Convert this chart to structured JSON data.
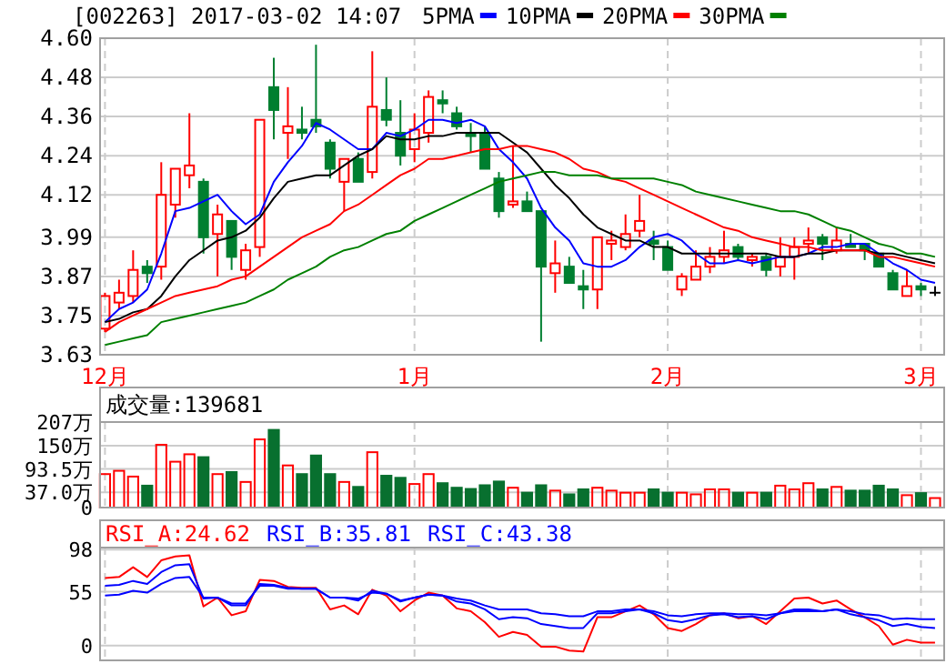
{
  "chart_data": [
    {
      "type": "candlestick",
      "title": "[002263] 2017-03-02 14:07",
      "legend": "top right",
      "grid": true,
      "categories": [
        "12月",
        null,
        null,
        null,
        null,
        null,
        null,
        null,
        null,
        null,
        null,
        null,
        null,
        null,
        null,
        null,
        null,
        null,
        null,
        null,
        null,
        null,
        "1月",
        null,
        null,
        null,
        null,
        null,
        null,
        null,
        null,
        null,
        null,
        null,
        null,
        null,
        null,
        null,
        null,
        null,
        "2月",
        null,
        null,
        null,
        null,
        null,
        null,
        null,
        null,
        null,
        null,
        null,
        null,
        null,
        null,
        null,
        null,
        null,
        "3月",
        null
      ],
      "ylim": [
        3.63,
        4.6
      ],
      "yticks": [
        {
          "value": 4.6,
          "label": "4.60"
        },
        4.48,
        4.36,
        4.24,
        4.12,
        3.99,
        3.87,
        3.75,
        3.63
      ],
      "ohlc": [
        [
          3.71,
          3.82,
          3.7,
          3.81
        ],
        [
          3.79,
          3.86,
          3.77,
          3.82
        ],
        [
          3.81,
          3.95,
          3.79,
          3.89
        ],
        [
          3.9,
          3.92,
          3.85,
          3.88
        ],
        [
          3.9,
          4.22,
          3.86,
          4.12
        ],
        [
          4.09,
          4.2,
          4.05,
          4.2
        ],
        [
          4.18,
          4.37,
          4.14,
          4.21
        ],
        [
          4.16,
          4.17,
          3.94,
          3.99
        ],
        [
          4.0,
          4.09,
          3.87,
          4.06
        ],
        [
          4.04,
          4.04,
          3.89,
          3.93
        ],
        [
          3.89,
          3.97,
          3.86,
          3.95
        ],
        [
          3.96,
          4.35,
          3.93,
          4.35
        ],
        [
          4.45,
          4.54,
          4.29,
          4.38
        ],
        [
          4.31,
          4.45,
          4.23,
          4.33
        ],
        [
          4.32,
          4.39,
          4.29,
          4.31
        ],
        [
          4.35,
          4.58,
          4.31,
          4.33
        ],
        [
          4.28,
          4.29,
          4.17,
          4.2
        ],
        [
          4.16,
          4.23,
          4.07,
          4.23
        ],
        [
          4.23,
          4.25,
          4.16,
          4.16
        ],
        [
          4.19,
          4.56,
          4.17,
          4.39
        ],
        [
          4.38,
          4.48,
          4.33,
          4.35
        ],
        [
          4.31,
          4.41,
          4.21,
          4.24
        ],
        [
          4.26,
          4.37,
          4.22,
          4.32
        ],
        [
          4.31,
          4.44,
          4.28,
          4.42
        ],
        [
          4.41,
          4.44,
          4.37,
          4.4
        ],
        [
          4.37,
          4.39,
          4.32,
          4.33
        ],
        [
          4.31,
          4.34,
          4.25,
          4.3
        ],
        [
          4.31,
          4.33,
          4.2,
          4.2
        ],
        [
          4.17,
          4.19,
          4.05,
          4.07
        ],
        [
          4.09,
          4.27,
          4.08,
          4.1
        ],
        [
          4.1,
          4.13,
          4.07,
          4.07
        ],
        [
          4.07,
          4.07,
          3.67,
          3.9
        ],
        [
          3.88,
          3.98,
          3.82,
          3.91
        ],
        [
          3.9,
          3.93,
          3.85,
          3.85
        ],
        [
          3.84,
          3.89,
          3.77,
          3.83
        ],
        [
          3.83,
          3.99,
          3.77,
          3.99
        ],
        [
          3.97,
          4.01,
          3.92,
          3.98
        ],
        [
          3.96,
          4.06,
          3.95,
          4.0
        ],
        [
          4.01,
          4.12,
          3.99,
          4.04
        ],
        [
          3.98,
          4.01,
          3.92,
          3.97
        ],
        [
          3.96,
          3.98,
          3.89,
          3.89
        ],
        [
          3.83,
          3.88,
          3.81,
          3.87
        ],
        [
          3.86,
          3.95,
          3.86,
          3.9
        ],
        [
          3.9,
          3.96,
          3.88,
          3.93
        ],
        [
          3.93,
          4.01,
          3.91,
          3.95
        ],
        [
          3.96,
          3.97,
          3.92,
          3.93
        ],
        [
          3.92,
          3.94,
          3.9,
          3.93
        ],
        [
          3.93,
          3.94,
          3.87,
          3.89
        ],
        [
          3.9,
          3.99,
          3.87,
          3.93
        ],
        [
          3.93,
          3.99,
          3.86,
          3.96
        ],
        [
          3.97,
          4.02,
          3.94,
          3.98
        ],
        [
          3.99,
          4.0,
          3.92,
          3.97
        ],
        [
          3.95,
          4.02,
          3.94,
          3.98
        ],
        [
          3.97,
          4.0,
          3.96,
          3.96
        ],
        [
          3.97,
          3.97,
          3.92,
          3.95
        ],
        [
          3.94,
          3.94,
          3.9,
          3.9
        ],
        [
          3.88,
          3.89,
          3.83,
          3.83
        ],
        [
          3.81,
          3.89,
          3.81,
          3.84
        ],
        [
          3.84,
          3.85,
          3.81,
          3.83
        ],
        [
          3.82,
          3.84,
          3.81,
          3.82
        ]
      ],
      "colors": [
        "#ff0000",
        "#ff0000",
        "#ff0000",
        "#007f30",
        "#ff0000",
        "#ff0000",
        "#ff0000",
        "#007f30",
        "#ff0000",
        "#007f30",
        "#ff0000",
        "#ff0000",
        "#007f30",
        "#ff0000",
        "#007f30",
        "#007f30",
        "#007f30",
        "#ff0000",
        "#007f30",
        "#ff0000",
        "#007f30",
        "#007f30",
        "#ff0000",
        "#ff0000",
        "#007f30",
        "#007f30",
        "#007f30",
        "#007f30",
        "#007f30",
        "#ff0000",
        "#007f30",
        "#007f30",
        "#ff0000",
        "#007f30",
        "#007f30",
        "#ff0000",
        "#ff0000",
        "#ff0000",
        "#ff0000",
        "#007f30",
        "#007f30",
        "#ff0000",
        "#ff0000",
        "#ff0000",
        "#ff0000",
        "#007f30",
        "#ff0000",
        "#007f30",
        "#ff0000",
        "#ff0000",
        "#ff0000",
        "#007f30",
        "#ff0000",
        "#007f30",
        "#007f30",
        "#007f30",
        "#007f30",
        "#ff0000",
        "#007f30",
        "#000000"
      ],
      "series": [
        {
          "type": "line",
          "name": "5PMA",
          "color": "#0000ff",
          "values": [
            3.73,
            3.77,
            3.79,
            3.83,
            3.94,
            4.07,
            4.08,
            4.1,
            4.12,
            4.07,
            4.03,
            4.06,
            4.16,
            4.22,
            4.27,
            4.34,
            4.32,
            4.29,
            4.26,
            4.26,
            4.31,
            4.3,
            4.32,
            4.35,
            4.35,
            4.34,
            4.35,
            4.33,
            4.26,
            4.22,
            4.17,
            4.08,
            4.02,
            3.98,
            3.91,
            3.9,
            3.9,
            3.92,
            3.96,
            3.99,
            4.0,
            3.98,
            3.94,
            3.91,
            3.91,
            3.92,
            3.91,
            3.92,
            3.93,
            3.93,
            3.94,
            3.96,
            3.96,
            3.97,
            3.97,
            3.94,
            3.91,
            3.89,
            3.86,
            3.85
          ]
        },
        {
          "type": "line",
          "name": "10PMA",
          "color": "#000000",
          "values": [
            3.73,
            3.74,
            3.76,
            3.77,
            3.81,
            3.87,
            3.92,
            3.95,
            3.98,
            3.99,
            4.01,
            4.05,
            4.11,
            4.16,
            4.17,
            4.18,
            4.18,
            4.21,
            4.24,
            4.26,
            4.3,
            4.29,
            4.29,
            4.3,
            4.3,
            4.31,
            4.31,
            4.31,
            4.31,
            4.28,
            4.25,
            4.2,
            4.15,
            4.11,
            4.06,
            4.02,
            4.0,
            3.98,
            3.98,
            3.96,
            3.96,
            3.94,
            3.94,
            3.94,
            3.94,
            3.94,
            3.94,
            3.94,
            3.93,
            3.93,
            3.94,
            3.94,
            3.95,
            3.95,
            3.95,
            3.94,
            3.94,
            3.93,
            3.92,
            3.91
          ]
        },
        {
          "type": "line",
          "name": "20PMA",
          "color": "#ff0000",
          "values": [
            3.7,
            3.73,
            3.75,
            3.77,
            3.79,
            3.81,
            3.82,
            3.83,
            3.84,
            3.86,
            3.87,
            3.9,
            3.93,
            3.96,
            3.99,
            4.01,
            4.03,
            4.07,
            4.09,
            4.12,
            4.15,
            4.18,
            4.2,
            4.23,
            4.23,
            4.24,
            4.25,
            4.26,
            4.26,
            4.27,
            4.27,
            4.26,
            4.25,
            4.23,
            4.2,
            4.19,
            4.17,
            4.16,
            4.14,
            4.12,
            4.1,
            4.08,
            4.06,
            4.04,
            4.02,
            4.01,
            3.99,
            3.98,
            3.97,
            3.96,
            3.96,
            3.95,
            3.95,
            3.95,
            3.95,
            3.93,
            3.93,
            3.92,
            3.91,
            3.9
          ]
        },
        {
          "type": "line",
          "name": "30PMA",
          "color": "#008000",
          "values": [
            3.66,
            3.67,
            3.68,
            3.69,
            3.73,
            3.74,
            3.75,
            3.76,
            3.77,
            3.78,
            3.79,
            3.81,
            3.83,
            3.86,
            3.88,
            3.9,
            3.93,
            3.95,
            3.96,
            3.98,
            4.0,
            4.01,
            4.04,
            4.06,
            4.08,
            4.1,
            4.12,
            4.14,
            4.16,
            4.17,
            4.18,
            4.19,
            4.19,
            4.18,
            4.18,
            4.18,
            4.17,
            4.17,
            4.17,
            4.17,
            4.16,
            4.15,
            4.13,
            4.12,
            4.11,
            4.1,
            4.09,
            4.08,
            4.07,
            4.07,
            4.06,
            4.04,
            4.02,
            4.01,
            3.99,
            3.97,
            3.96,
            3.94,
            3.94,
            3.93
          ]
        }
      ]
    },
    {
      "type": "bar",
      "title": "成交量:139681",
      "grid": true,
      "tick_labels": "y",
      "categories": [
        null,
        null,
        null,
        null,
        null,
        null,
        null,
        null,
        null,
        null,
        null,
        null,
        null,
        null,
        null,
        null,
        null,
        null,
        null,
        null,
        null,
        null,
        null,
        null,
        null,
        null,
        null,
        null,
        null,
        null,
        null,
        null,
        null,
        null,
        null,
        null,
        null,
        null,
        null,
        null,
        null,
        null,
        null,
        null,
        null,
        null,
        null,
        null,
        null,
        null,
        null,
        null,
        null,
        null,
        null,
        null,
        null,
        null,
        null,
        null
      ],
      "ylim": [
        0,
        207
      ],
      "yticks": [
        {
          "value": 207,
          "label": "207万"
        },
        {
          "value": 150,
          "label": "150万"
        },
        {
          "value": 93.5,
          "label": "93.5万"
        },
        {
          "value": 37,
          "label": "37.0万"
        },
        0
      ],
      "values": [
        81,
        89,
        75,
        53,
        152,
        111,
        129,
        122,
        81,
        86,
        62,
        165,
        188,
        102,
        81,
        126,
        81,
        62,
        50,
        134,
        77,
        72,
        57,
        81,
        59,
        48,
        45,
        54,
        63,
        48,
        36,
        54,
        41,
        32,
        44,
        48,
        41,
        36,
        36,
        44,
        36,
        36,
        32,
        44,
        44,
        36,
        36,
        36,
        53,
        44,
        59,
        44,
        50,
        41,
        41,
        53,
        44,
        30,
        35,
        23
      ],
      "colors": [
        "#ff0000",
        "#ff0000",
        "#ff0000",
        "#08702f",
        "#ff0000",
        "#ff0000",
        "#ff0000",
        "#08702f",
        "#ff0000",
        "#08702f",
        "#ff0000",
        "#ff0000",
        "#08702f",
        "#ff0000",
        "#08702f",
        "#08702f",
        "#08702f",
        "#ff0000",
        "#08702f",
        "#ff0000",
        "#08702f",
        "#08702f",
        "#ff0000",
        "#ff0000",
        "#08702f",
        "#08702f",
        "#08702f",
        "#08702f",
        "#08702f",
        "#ff0000",
        "#08702f",
        "#08702f",
        "#ff0000",
        "#08702f",
        "#08702f",
        "#ff0000",
        "#ff0000",
        "#ff0000",
        "#ff0000",
        "#08702f",
        "#08702f",
        "#ff0000",
        "#ff0000",
        "#ff0000",
        "#ff0000",
        "#08702f",
        "#ff0000",
        "#08702f",
        "#ff0000",
        "#ff0000",
        "#ff0000",
        "#08702f",
        "#ff0000",
        "#08702f",
        "#08702f",
        "#08702f",
        "#08702f",
        "#ff0000",
        "#08702f",
        "#ff0000"
      ]
    },
    {
      "type": "line",
      "legend": "top left",
      "grid": true,
      "tick_labels": "y",
      "categories": [
        null,
        null,
        null,
        null,
        null,
        null,
        null,
        null,
        null,
        null,
        null,
        null,
        null,
        null,
        null,
        null,
        null,
        null,
        null,
        null,
        null,
        null,
        null,
        null,
        null,
        null,
        null,
        null,
        null,
        null,
        null,
        null,
        null,
        null,
        null,
        null,
        null,
        null,
        null,
        null,
        null,
        null,
        null,
        null,
        null,
        null,
        null,
        null,
        null,
        null,
        null,
        null,
        null,
        null,
        null,
        null,
        null,
        null,
        null,
        null
      ],
      "ylim": [
        -15,
        100
      ],
      "yticks": [
        98,
        55,
        0
      ],
      "series": [
        {
          "name": "RSI_A:24.62",
          "color": "#ff0000",
          "values": [
            69,
            70,
            80,
            70,
            87,
            91,
            92,
            40,
            49,
            31,
            35,
            67,
            66,
            60,
            59,
            59,
            37,
            41,
            32,
            57,
            51,
            35,
            46,
            54,
            51,
            38,
            35,
            24,
            9,
            14,
            11,
            -1,
            -1,
            -5,
            -6,
            29,
            29,
            35,
            41,
            32,
            18,
            15,
            22,
            31,
            33,
            28,
            30,
            22,
            35,
            48,
            49,
            43,
            46,
            37,
            29,
            20,
            1,
            6,
            3,
            3
          ]
        },
        {
          "name": "RSI_B:35.81",
          "color": "#0000ff",
          "values": [
            61,
            62,
            66,
            63,
            75,
            82,
            83,
            48,
            49,
            41,
            41,
            63,
            62,
            59,
            58,
            58,
            49,
            49,
            46,
            56,
            53,
            45,
            49,
            52,
            51,
            45,
            43,
            37,
            27,
            29,
            28,
            22,
            20,
            18,
            18,
            33,
            33,
            35,
            37,
            33,
            26,
            24,
            27,
            31,
            32,
            29,
            30,
            27,
            33,
            37,
            37,
            35,
            37,
            32,
            29,
            26,
            20,
            22,
            19,
            18
          ]
        },
        {
          "name": "RSI_C:43.38",
          "color": "#0000ff",
          "values": [
            51,
            52,
            56,
            54,
            63,
            69,
            70,
            49,
            49,
            43,
            43,
            61,
            61,
            58,
            58,
            58,
            49,
            49,
            48,
            54,
            53,
            46,
            49,
            52,
            51,
            48,
            46,
            41,
            37,
            37,
            37,
            33,
            32,
            30,
            30,
            35,
            35,
            37,
            37,
            35,
            31,
            30,
            32,
            33,
            33,
            32,
            32,
            31,
            33,
            35,
            35,
            35,
            37,
            35,
            32,
            31,
            27,
            28,
            27,
            27
          ]
        }
      ]
    }
  ]
}
